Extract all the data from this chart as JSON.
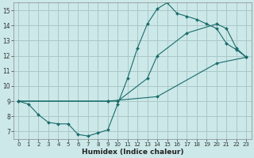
{
  "xlabel": "Humidex (Indice chaleur)",
  "ylabel": "",
  "xlim": [
    -0.5,
    23.5
  ],
  "ylim": [
    6.5,
    15.5
  ],
  "xticks": [
    0,
    1,
    2,
    3,
    4,
    5,
    6,
    7,
    8,
    9,
    10,
    11,
    12,
    13,
    14,
    15,
    16,
    17,
    18,
    19,
    20,
    21,
    22,
    23
  ],
  "yticks": [
    7,
    8,
    9,
    10,
    11,
    12,
    13,
    14,
    15
  ],
  "bg_color": "#cce8e8",
  "line_color": "#1a6b6b",
  "grid_color": "#aac8c8",
  "line1_x": [
    0,
    1,
    2,
    3,
    4,
    5,
    6,
    7,
    8,
    9,
    10,
    11,
    12,
    13,
    14,
    15,
    16,
    17,
    18,
    19,
    20,
    21,
    22,
    23
  ],
  "line1_y": [
    9.0,
    8.8,
    8.1,
    7.6,
    7.5,
    7.5,
    6.8,
    6.7,
    6.9,
    7.1,
    8.8,
    10.5,
    12.5,
    14.1,
    15.1,
    15.5,
    14.8,
    14.6,
    14.4,
    14.1,
    13.8,
    12.8,
    12.4,
    11.9
  ],
  "line2_x": [
    0,
    9,
    10,
    13,
    14,
    17,
    20,
    21,
    22,
    23
  ],
  "line2_y": [
    9.0,
    9.0,
    9.0,
    10.5,
    12.0,
    13.5,
    14.1,
    13.8,
    12.5,
    11.9
  ],
  "line3_x": [
    0,
    9,
    14,
    20,
    23
  ],
  "line3_y": [
    9.0,
    9.0,
    9.3,
    11.5,
    11.9
  ]
}
